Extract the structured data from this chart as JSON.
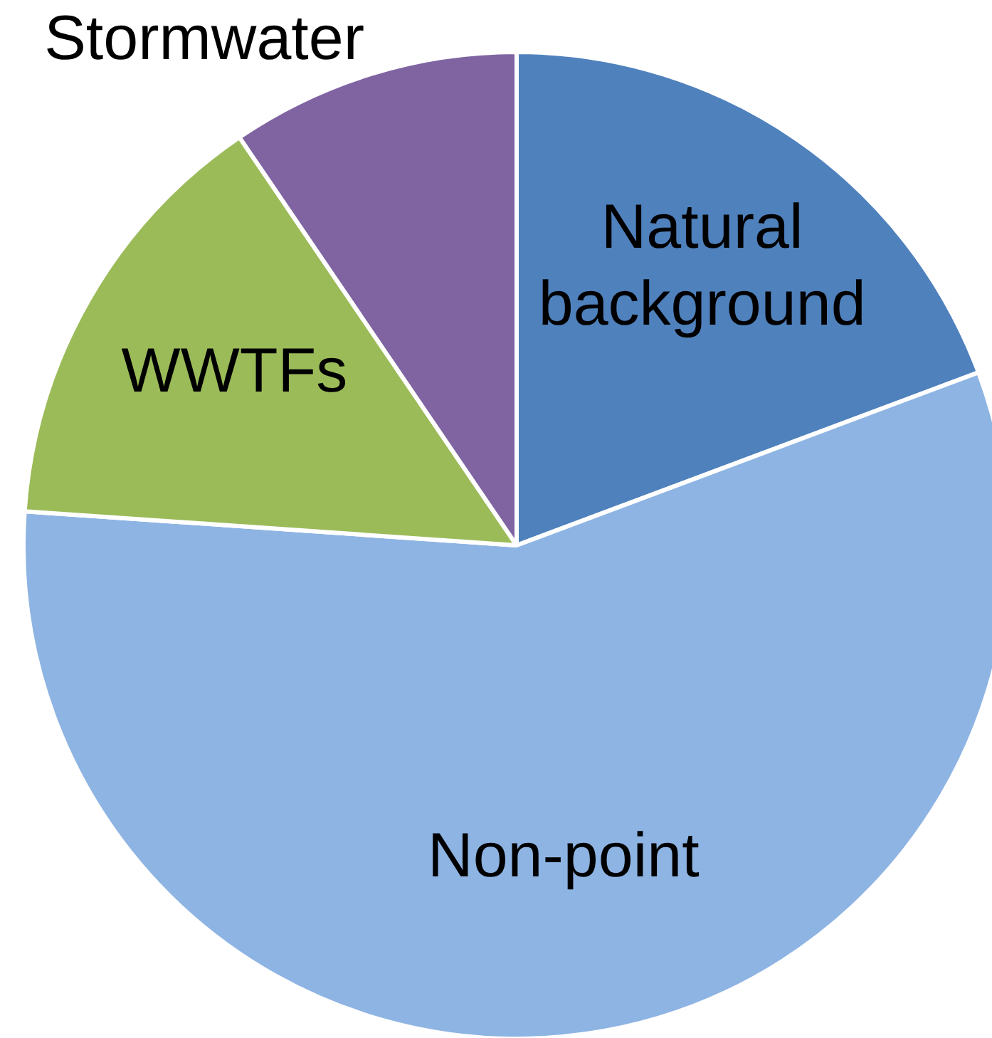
{
  "chart_data": {
    "type": "pie",
    "categories": [
      "Natural background",
      "Non-point",
      "WWTFs",
      "Stormwater"
    ],
    "values": [
      19.3,
      56.8,
      14.4,
      9.5
    ],
    "colors": [
      "#4f81bd",
      "#8eb4e3",
      "#9bbb59",
      "#8064a2"
    ],
    "legend": false
  }
}
